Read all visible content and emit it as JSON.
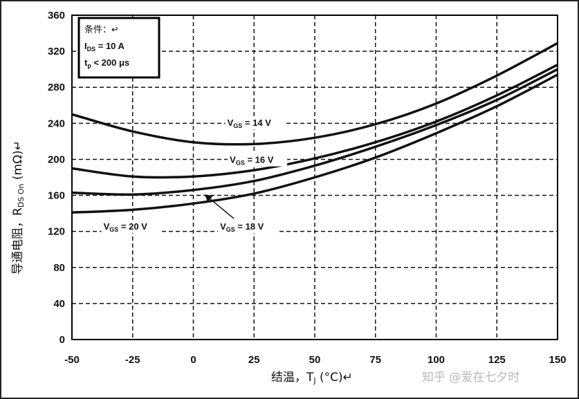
{
  "chart_data": {
    "type": "line",
    "xlabel": "结温，T",
    "xlabel_sub": "J",
    "xlabel_unit": " (°C)↵",
    "ylabel": "导通电阻，R",
    "ylabel_sub": "DS On",
    "ylabel_unit": " (mΩ)↵",
    "xlim": [
      -50,
      150
    ],
    "ylim": [
      0,
      360
    ],
    "x_ticks": [
      -50,
      -25,
      0,
      25,
      50,
      75,
      100,
      125,
      150
    ],
    "y_ticks": [
      0,
      40,
      80,
      120,
      160,
      200,
      240,
      280,
      320,
      360
    ],
    "x_tick_labels": [
      "-50",
      "-25",
      "0",
      "25",
      "50",
      "75",
      "100",
      "125",
      "150"
    ],
    "y_tick_labels": [
      "0",
      "40",
      "80",
      "120",
      "160",
      "200",
      "240",
      "280",
      "320",
      "360"
    ],
    "grid": true,
    "x": [
      -50,
      -25,
      0,
      25,
      50,
      75,
      100,
      125,
      150
    ],
    "series": [
      {
        "name": "VGS = 14 V",
        "values": [
          250,
          231,
          219,
          217,
          224,
          239,
          262,
          293,
          329
        ]
      },
      {
        "name": "VGS = 16 V",
        "values": [
          190,
          181,
          181,
          188,
          201,
          219,
          242,
          271,
          305
        ]
      },
      {
        "name": "VGS = 18 V",
        "values": [
          163,
          161,
          166,
          176,
          193,
          214,
          238,
          266,
          300
        ]
      },
      {
        "name": "VGS = 20 V",
        "values": [
          141,
          144,
          151,
          162,
          180,
          202,
          229,
          259,
          294
        ]
      }
    ],
    "conditions": {
      "heading": "条件：↵",
      "line1": {
        "main": "I",
        "sub": "DS",
        "rest": " = 10 A"
      },
      "line2": {
        "main": "t",
        "sub": "p",
        "rest": " < 200 μs"
      }
    },
    "annotations": [
      {
        "series": "VGS = 14 V",
        "main": "V",
        "sub": "GS",
        "rest": " = 14 V",
        "x": 14,
        "y": 237
      },
      {
        "series": "VGS = 16 V",
        "main": "V",
        "sub": "GS",
        "rest": " = 16 V",
        "x": 15,
        "y": 196
      },
      {
        "series": "VGS = 18 V",
        "main": "V",
        "sub": "GS",
        "rest": " = 18 V",
        "x": 11,
        "y": 122,
        "arrow_to": [
          5,
          165
        ]
      },
      {
        "series": "VGS = 20 V",
        "main": "V",
        "sub": "GS",
        "rest": " = 20 V",
        "x": -37,
        "y": 122
      }
    ]
  },
  "watermark": "知乎 @爱在七夕时"
}
